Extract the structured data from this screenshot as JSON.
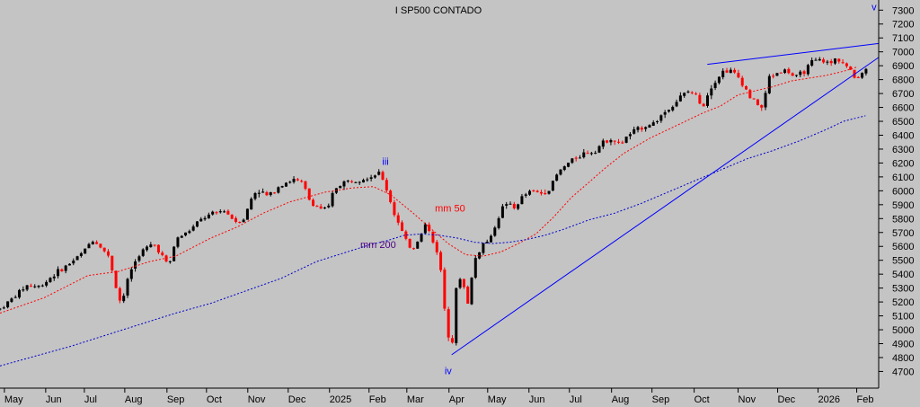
{
  "chart_data": {
    "type": "candlestick",
    "title": "I SP500 CONTADO",
    "colors": {
      "background": "#c4c4c4",
      "up": "#000000",
      "down": "#ff0000",
      "mm50": "#ff0000",
      "mm200": "#0000cc",
      "trendline": "#0000ff",
      "mm200_label": "#4b0082",
      "wave_label": "#0000ff"
    },
    "ylim": [
      4580,
      7360
    ],
    "y_ticks": [
      4700,
      4800,
      4900,
      5000,
      5100,
      5200,
      5300,
      5400,
      5500,
      5600,
      5700,
      5800,
      5900,
      6000,
      6100,
      6200,
      6300,
      6400,
      6500,
      6600,
      6700,
      6800,
      6900,
      7000,
      7100,
      7200,
      7300
    ],
    "x_range": [
      0,
      100
    ],
    "x_ticks": [
      {
        "label": "May",
        "x": 0.5
      },
      {
        "label": "Jun",
        "x": 5.2
      },
      {
        "label": "Jul",
        "x": 9.6
      },
      {
        "label": "Aug",
        "x": 14.2
      },
      {
        "label": "Sep",
        "x": 19.0
      },
      {
        "label": "Oct",
        "x": 23.5
      },
      {
        "label": "Nov",
        "x": 28.2
      },
      {
        "label": "Dec",
        "x": 32.8
      },
      {
        "label": "2025",
        "x": 37.5
      },
      {
        "label": "Feb",
        "x": 42.0
      },
      {
        "label": "Mar",
        "x": 46.3
      },
      {
        "label": "Apr",
        "x": 51.1
      },
      {
        "label": "May",
        "x": 55.5
      },
      {
        "label": "Jun",
        "x": 60.2
      },
      {
        "label": "Jul",
        "x": 64.8
      },
      {
        "label": "Aug",
        "x": 69.6
      },
      {
        "label": "Sep",
        "x": 74.2
      },
      {
        "label": "Oct",
        "x": 79.0
      },
      {
        "label": "Nov",
        "x": 84.0
      },
      {
        "label": "Dec",
        "x": 88.5
      },
      {
        "label": "2026",
        "x": 93.1
      },
      {
        "label": "Feb",
        "x": 97.5
      }
    ],
    "price_path": [
      [
        0,
        5150
      ],
      [
        1.5,
        5230
      ],
      [
        3,
        5320
      ],
      [
        4.5,
        5310
      ],
      [
        6,
        5390
      ],
      [
        8,
        5480
      ],
      [
        9.5,
        5560
      ],
      [
        10.5,
        5650
      ],
      [
        11.5,
        5600
      ],
      [
        12.5,
        5510
      ],
      [
        13.3,
        5280
      ],
      [
        13.8,
        5180
      ],
      [
        14.8,
        5420
      ],
      [
        16,
        5560
      ],
      [
        17.5,
        5620
      ],
      [
        18.5,
        5530
      ],
      [
        19.2,
        5450
      ],
      [
        20,
        5650
      ],
      [
        21.5,
        5710
      ],
      [
        23,
        5800
      ],
      [
        24.5,
        5840
      ],
      [
        25.5,
        5860
      ],
      [
        26.8,
        5780
      ],
      [
        27.8,
        5800
      ],
      [
        28.8,
        5980
      ],
      [
        29.5,
        6000
      ],
      [
        30.5,
        5960
      ],
      [
        32,
        6050
      ],
      [
        33.5,
        6080
      ],
      [
        34.5,
        6050
      ],
      [
        35.3,
        5920
      ],
      [
        36.2,
        5880
      ],
      [
        37.3,
        5860
      ],
      [
        38,
        6010
      ],
      [
        39,
        6060
      ],
      [
        40.5,
        6080
      ],
      [
        42,
        6100
      ],
      [
        43.2,
        6130
      ],
      [
        44,
        6010
      ],
      [
        44.8,
        5850
      ],
      [
        45.5,
        5740
      ],
      [
        46.3,
        5620
      ],
      [
        47,
        5580
      ],
      [
        47.8,
        5680
      ],
      [
        48.5,
        5770
      ],
      [
        49.2,
        5640
      ],
      [
        50,
        5530
      ],
      [
        50.5,
        5200
      ],
      [
        51,
        4980
      ],
      [
        51.4,
        4850
      ],
      [
        51.9,
        5280
      ],
      [
        52.5,
        5400
      ],
      [
        53.2,
        5180
      ],
      [
        54,
        5500
      ],
      [
        55,
        5620
      ],
      [
        55.8,
        5650
      ],
      [
        56.5,
        5780
      ],
      [
        57.5,
        5920
      ],
      [
        58.5,
        5870
      ],
      [
        59.5,
        5960
      ],
      [
        60.5,
        6000
      ],
      [
        61.5,
        5980
      ],
      [
        62.5,
        6010
      ],
      [
        63.5,
        6130
      ],
      [
        64.5,
        6190
      ],
      [
        65.5,
        6240
      ],
      [
        66.8,
        6280
      ],
      [
        67.5,
        6280
      ],
      [
        68.5,
        6340
      ],
      [
        69.5,
        6380
      ],
      [
        70.5,
        6330
      ],
      [
        71.5,
        6400
      ],
      [
        72.5,
        6440
      ],
      [
        73.5,
        6470
      ],
      [
        74.5,
        6490
      ],
      [
        75.5,
        6560
      ],
      [
        76.5,
        6610
      ],
      [
        77.5,
        6680
      ],
      [
        78.5,
        6720
      ],
      [
        79.2,
        6680
      ],
      [
        80,
        6610
      ],
      [
        80.8,
        6740
      ],
      [
        81.5,
        6800
      ],
      [
        82.3,
        6860
      ],
      [
        83,
        6870
      ],
      [
        84,
        6820
      ],
      [
        84.8,
        6740
      ],
      [
        85.5,
        6660
      ],
      [
        86.3,
        6620
      ],
      [
        86.8,
        6590
      ],
      [
        87.5,
        6820
      ],
      [
        88.5,
        6850
      ],
      [
        89.5,
        6870
      ],
      [
        90.5,
        6810
      ],
      [
        91.5,
        6860
      ],
      [
        92.5,
        6930
      ],
      [
        93.5,
        6940
      ],
      [
        94.5,
        6910
      ],
      [
        95.2,
        6960
      ],
      [
        96,
        6920
      ],
      [
        96.8,
        6860
      ],
      [
        97.4,
        6800
      ],
      [
        98,
        6850
      ],
      [
        98.8,
        6880
      ]
    ],
    "mm50": [
      [
        0,
        5120
      ],
      [
        5,
        5230
      ],
      [
        10,
        5390
      ],
      [
        13.5,
        5420
      ],
      [
        17,
        5490
      ],
      [
        20,
        5530
      ],
      [
        24,
        5660
      ],
      [
        27,
        5740
      ],
      [
        30,
        5840
      ],
      [
        33,
        5920
      ],
      [
        37,
        5990
      ],
      [
        40,
        6020
      ],
      [
        42.5,
        6030
      ],
      [
        44.5,
        5970
      ],
      [
        47,
        5840
      ],
      [
        49,
        5730
      ],
      [
        51,
        5620
      ],
      [
        53,
        5540
      ],
      [
        55,
        5530
      ],
      [
        57,
        5560
      ],
      [
        59,
        5620
      ],
      [
        61,
        5690
      ],
      [
        63,
        5810
      ],
      [
        65,
        5950
      ],
      [
        67,
        6060
      ],
      [
        69,
        6170
      ],
      [
        71,
        6270
      ],
      [
        74,
        6380
      ],
      [
        77,
        6470
      ],
      [
        80,
        6560
      ],
      [
        82,
        6610
      ],
      [
        84,
        6690
      ],
      [
        86,
        6720
      ],
      [
        88,
        6750
      ],
      [
        90,
        6790
      ],
      [
        92,
        6810
      ],
      [
        94,
        6830
      ],
      [
        96,
        6860
      ],
      [
        97.5,
        6890
      ]
    ],
    "mm200": [
      [
        0,
        4740
      ],
      [
        4,
        4810
      ],
      [
        8,
        4880
      ],
      [
        12,
        4960
      ],
      [
        16,
        5040
      ],
      [
        20,
        5120
      ],
      [
        24,
        5190
      ],
      [
        28,
        5280
      ],
      [
        32,
        5370
      ],
      [
        36,
        5490
      ],
      [
        40,
        5570
      ],
      [
        42,
        5610
      ],
      [
        44,
        5640
      ],
      [
        46,
        5680
      ],
      [
        48,
        5690
      ],
      [
        50,
        5680
      ],
      [
        52,
        5660
      ],
      [
        54,
        5630
      ],
      [
        56,
        5620
      ],
      [
        58,
        5630
      ],
      [
        60,
        5650
      ],
      [
        62,
        5680
      ],
      [
        64,
        5720
      ],
      [
        67,
        5790
      ],
      [
        70,
        5840
      ],
      [
        73,
        5910
      ],
      [
        76,
        5990
      ],
      [
        79,
        6070
      ],
      [
        82,
        6150
      ],
      [
        85,
        6230
      ],
      [
        88,
        6290
      ],
      [
        91,
        6360
      ],
      [
        94,
        6440
      ],
      [
        96,
        6500
      ],
      [
        98.5,
        6540
      ]
    ],
    "trendlines": [
      {
        "points": [
          [
            51.4,
            4820
          ],
          [
            100,
            6960
          ]
        ]
      },
      {
        "points": [
          [
            80.5,
            6910
          ],
          [
            100,
            7060
          ]
        ]
      }
    ],
    "annotations": [
      {
        "text": "iii",
        "x": 43.5,
        "y": 6185,
        "color": "#0000ff"
      },
      {
        "text": "mm 50",
        "x": 49.5,
        "y": 5850,
        "color": "#ff0000"
      },
      {
        "text": "mm 200",
        "x": 41,
        "y": 5590,
        "color": "#4b0082"
      },
      {
        "text": "iv",
        "x": 50.6,
        "y": 4680,
        "color": "#0000ff"
      },
      {
        "text": "v",
        "x": 99.2,
        "y": 7300,
        "color": "#0000ff"
      }
    ]
  }
}
